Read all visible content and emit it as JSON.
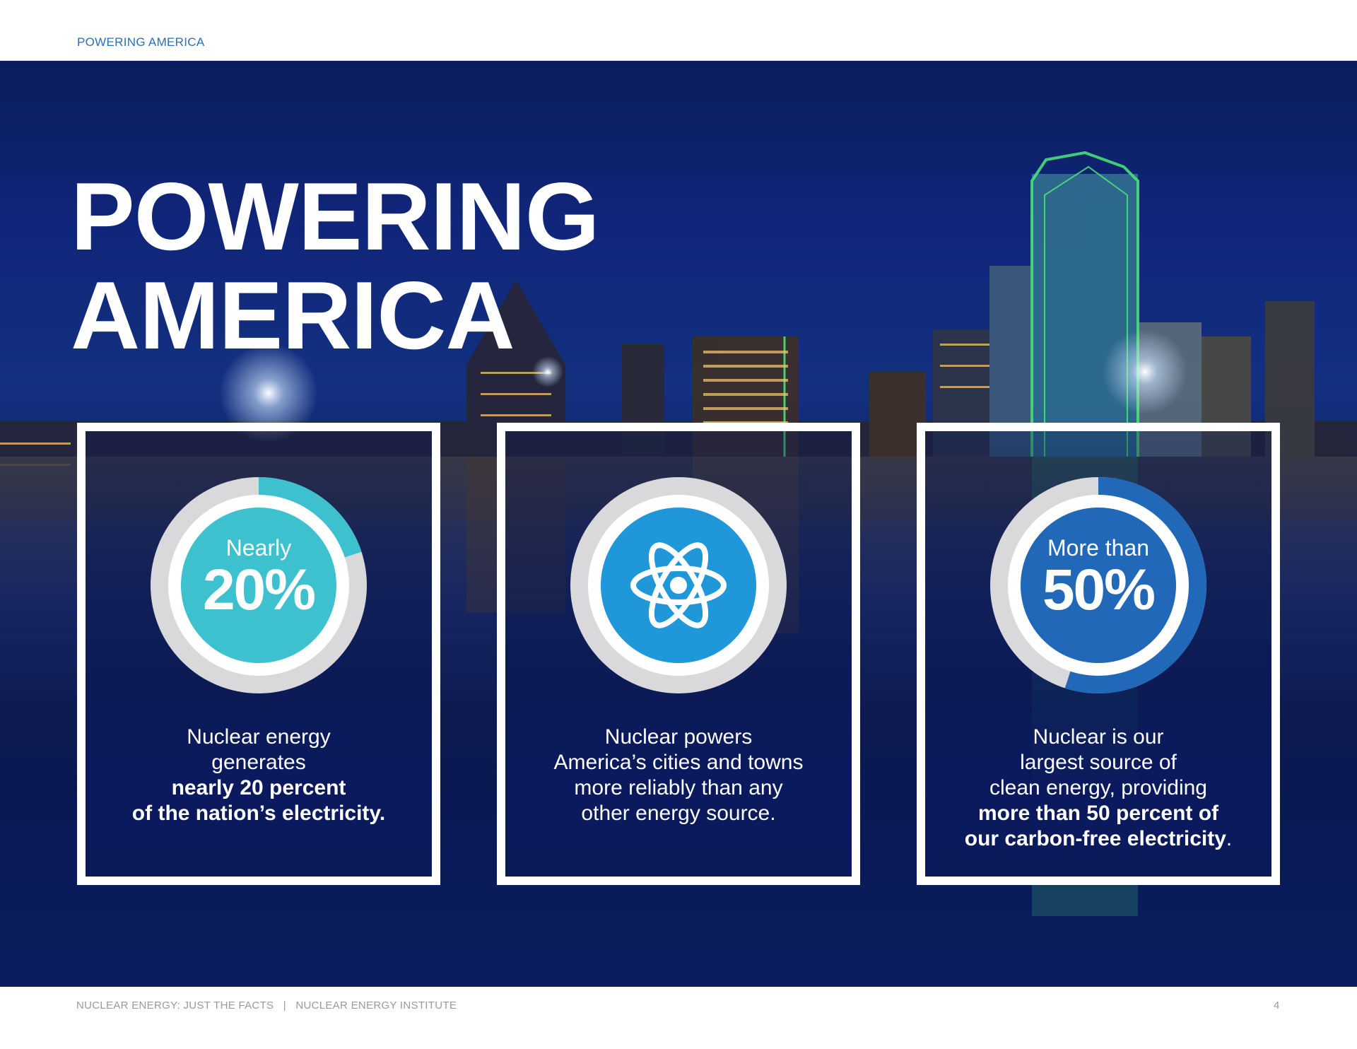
{
  "header": {
    "section_title": "POWERING AMERICA"
  },
  "hero": {
    "title_line1": "POWERING",
    "title_line2": "AMERICA"
  },
  "cards": [
    {
      "ring_label": "Nearly",
      "ring_value": "20%",
      "fill_fraction": 0.2,
      "ring_color": "#3ec1cf",
      "caption_line1": "Nuclear energy",
      "caption_line2": "generates",
      "caption_bold1": "nearly 20 percent",
      "caption_bold2": "of the nation’s electricity."
    },
    {
      "icon": "atom-icon",
      "ring_color": "#1f97d9",
      "caption_line1": "Nuclear powers",
      "caption_line2": "America’s cities and towns",
      "caption_line3": "more reliably than any",
      "caption_line4": "other energy source."
    },
    {
      "ring_label": "More than",
      "ring_value": "50%",
      "fill_fraction": 0.55,
      "ring_color": "#2169b8",
      "caption_line1": "Nuclear is our",
      "caption_line2": "largest source of",
      "caption_line3": "clean energy, providing",
      "caption_bold1": "more than 50 percent of",
      "caption_bold2": "our carbon-free electricity",
      "caption_tail": "."
    }
  ],
  "footer": {
    "left_text": "NUCLEAR ENERGY: JUST THE FACTS   |   NUCLEAR ENERGY INSTITUTE",
    "page_number": "4"
  },
  "colors": {
    "accent_blue": "#2a6fb5",
    "navy": "#0b1d5c",
    "ring_gray": "#d9d9dc"
  }
}
